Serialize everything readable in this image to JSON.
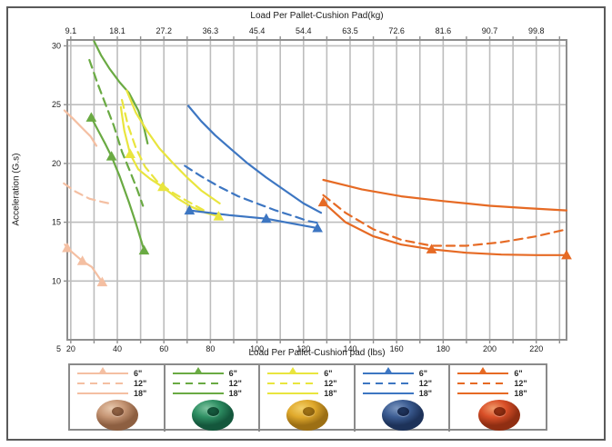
{
  "chart_data": {
    "type": "line",
    "title_top": "Load Per Pallet-Cushion Pad(kg)",
    "xlabel_bottom": "Load Per Pallet-Cushion pad (lbs)",
    "ylabel": "Acceleration (G.s)",
    "x_ticks_lbs": [
      20,
      40,
      60,
      80,
      100,
      120,
      140,
      160,
      180,
      200,
      220
    ],
    "x_ticks_kg": [
      "9.1",
      "18.1",
      "27.2",
      "36.3",
      "45.4",
      "54.4",
      "63.5",
      "72.6",
      "81.6",
      "90.7",
      "99.8"
    ],
    "y_ticks": [
      5,
      10,
      15,
      20,
      25,
      30
    ],
    "y_corner_label": "5",
    "xlim": [
      18.5,
      233
    ],
    "ylim": [
      5,
      30.5
    ],
    "x_grid": {
      "start": 20,
      "end": 230,
      "step": 10
    },
    "y_grid": {
      "start": 10,
      "end": 30,
      "step": 5
    },
    "grid": true,
    "grid_color": "#bdbdbd",
    "border_color": "#8f8f8f",
    "legend_position": "bottom",
    "series": [
      {
        "group": "tan",
        "name": "6\"",
        "style": "solid",
        "marker": "triangle",
        "color": "#f4bfa2",
        "points": [
          [
            17.5,
            13.1
          ],
          [
            18.5,
            12.8
          ],
          [
            25,
            11.7
          ],
          [
            29,
            11.2
          ],
          [
            33.5,
            9.9
          ]
        ],
        "markers": [
          [
            18.5,
            12.8
          ],
          [
            25,
            11.7
          ],
          [
            33.5,
            9.9
          ]
        ]
      },
      {
        "group": "tan",
        "name": "12\"",
        "style": "dashed",
        "color": "#f4bfa2",
        "points": [
          [
            17,
            18.3
          ],
          [
            22,
            17.6
          ],
          [
            28,
            17.0
          ],
          [
            33,
            16.75
          ],
          [
            36.5,
            16.6
          ]
        ]
      },
      {
        "group": "tan",
        "name": "18\"",
        "style": "solid",
        "color": "#f4bfa2",
        "points": [
          [
            17.3,
            24.5
          ],
          [
            21,
            23.8
          ],
          [
            25,
            23.0
          ],
          [
            28.5,
            22.3
          ],
          [
            31,
            21.5
          ]
        ]
      },
      {
        "group": "green",
        "name": "6\"",
        "style": "solid",
        "marker": "triangle",
        "color": "#6aaa43",
        "points": [
          [
            28.8,
            23.9
          ],
          [
            32,
            22.7
          ],
          [
            35,
            21.6
          ],
          [
            37.5,
            20.6
          ],
          [
            41,
            18.9
          ],
          [
            45,
            16.7
          ],
          [
            48,
            14.9
          ],
          [
            51.5,
            12.6
          ]
        ],
        "markers": [
          [
            28.8,
            23.9
          ],
          [
            37.5,
            20.6
          ],
          [
            51.5,
            12.6
          ]
        ]
      },
      {
        "group": "green",
        "name": "12\"",
        "style": "dashed",
        "color": "#6aaa43",
        "points": [
          [
            28,
            28.8
          ],
          [
            31.5,
            26.8
          ],
          [
            35,
            25.0
          ],
          [
            38.5,
            23.2
          ],
          [
            42,
            21.0
          ],
          [
            45.5,
            19.3
          ],
          [
            48.5,
            17.8
          ],
          [
            51,
            16.4
          ]
        ]
      },
      {
        "group": "green",
        "name": "18\"",
        "style": "solid",
        "color": "#6aaa43",
        "points": [
          [
            30,
            30.4
          ],
          [
            33,
            29.2
          ],
          [
            36.5,
            28.1
          ],
          [
            41,
            26.9
          ],
          [
            45,
            26.0
          ],
          [
            49,
            24.5
          ],
          [
            51.5,
            23.0
          ],
          [
            53,
            21.7
          ]
        ]
      },
      {
        "group": "yellow",
        "name": "6\"",
        "style": "solid",
        "marker": "triangle",
        "color": "#e9e53e",
        "points": [
          [
            41.5,
            24.8
          ],
          [
            43,
            22.8
          ],
          [
            45.5,
            20.8
          ],
          [
            49,
            19.5
          ],
          [
            54,
            18.7
          ],
          [
            59.5,
            18.0
          ],
          [
            66,
            17.0
          ],
          [
            72,
            16.3
          ],
          [
            78,
            15.8
          ],
          [
            83.5,
            15.5
          ]
        ],
        "markers": [
          [
            45.5,
            20.8
          ],
          [
            59.5,
            18.0
          ],
          [
            83.5,
            15.5
          ]
        ]
      },
      {
        "group": "yellow",
        "name": "12\"",
        "style": "dashed",
        "color": "#e9e53e",
        "points": [
          [
            42,
            25.4
          ],
          [
            44.5,
            23.3
          ],
          [
            48,
            21.3
          ],
          [
            52,
            19.7
          ],
          [
            57,
            18.5
          ],
          [
            63,
            17.6
          ],
          [
            70,
            16.8
          ],
          [
            80,
            15.7
          ]
        ]
      },
      {
        "group": "yellow",
        "name": "18\"",
        "style": "solid",
        "color": "#e9e53e",
        "points": [
          [
            44,
            26.2
          ],
          [
            48,
            24.3
          ],
          [
            53,
            22.7
          ],
          [
            58,
            21.3
          ],
          [
            64,
            20.0
          ],
          [
            70,
            18.8
          ],
          [
            76,
            17.7
          ],
          [
            84,
            16.6
          ]
        ]
      },
      {
        "group": "blue",
        "name": "6\"",
        "style": "solid",
        "marker": "triangle",
        "color": "#3d76c2",
        "points": [
          [
            71,
            16.0
          ],
          [
            88,
            15.6
          ],
          [
            104,
            15.3
          ],
          [
            115,
            14.9
          ],
          [
            126,
            14.5
          ]
        ],
        "markers": [
          [
            71,
            16.0
          ],
          [
            104,
            15.3
          ],
          [
            126,
            14.5
          ]
        ]
      },
      {
        "group": "blue",
        "name": "12\"",
        "style": "dashed",
        "color": "#3d76c2",
        "points": [
          [
            69,
            19.8
          ],
          [
            76,
            18.9
          ],
          [
            84,
            18.0
          ],
          [
            92,
            17.2
          ],
          [
            100,
            16.6
          ],
          [
            108,
            16.0
          ],
          [
            116,
            15.5
          ],
          [
            122,
            15.1
          ],
          [
            127.5,
            14.9
          ]
        ]
      },
      {
        "group": "blue",
        "name": "18\"",
        "style": "solid",
        "color": "#3d76c2",
        "points": [
          [
            70.5,
            24.9
          ],
          [
            76,
            23.6
          ],
          [
            82,
            22.4
          ],
          [
            89,
            21.2
          ],
          [
            96,
            20.0
          ],
          [
            104,
            18.8
          ],
          [
            112,
            17.7
          ],
          [
            120,
            16.6
          ],
          [
            127.5,
            15.8
          ]
        ]
      },
      {
        "group": "orange",
        "name": "6\"",
        "style": "solid",
        "marker": "triangle",
        "color": "#e66a24",
        "points": [
          [
            128.5,
            16.7
          ],
          [
            138,
            15.0
          ],
          [
            150,
            13.8
          ],
          [
            162,
            13.1
          ],
          [
            175,
            12.7
          ],
          [
            190,
            12.4
          ],
          [
            205,
            12.25
          ],
          [
            220,
            12.2
          ],
          [
            233,
            12.2
          ]
        ],
        "markers": [
          [
            128.5,
            16.7
          ],
          [
            175,
            12.7
          ],
          [
            233,
            12.2
          ]
        ]
      },
      {
        "group": "orange",
        "name": "12\"",
        "style": "dashed",
        "color": "#e66a24",
        "points": [
          [
            128.5,
            17.3
          ],
          [
            138,
            15.8
          ],
          [
            150,
            14.4
          ],
          [
            162,
            13.5
          ],
          [
            175,
            13.0
          ],
          [
            190,
            13.0
          ],
          [
            205,
            13.3
          ],
          [
            220,
            13.8
          ],
          [
            233,
            14.4
          ]
        ]
      },
      {
        "group": "orange",
        "name": "18\"",
        "style": "solid",
        "color": "#e66a24",
        "points": [
          [
            128.5,
            18.6
          ],
          [
            145,
            17.8
          ],
          [
            162,
            17.2
          ],
          [
            180,
            16.8
          ],
          [
            200,
            16.4
          ],
          [
            216,
            16.2
          ],
          [
            233,
            16.0
          ]
        ]
      }
    ]
  },
  "legend": {
    "groups": [
      {
        "id": "tan",
        "color": "#f4bfa2",
        "entries": [
          "6\"",
          "12\"",
          "18\""
        ],
        "donut": {
          "light": "#e8c9ae",
          "base": "#c69675",
          "dark": "#8d5f41",
          "hole": "#6e4630"
        }
      },
      {
        "id": "green",
        "color": "#6aaa43",
        "entries": [
          "6\"",
          "12\"",
          "18\""
        ],
        "donut": {
          "light": "#7fc4a0",
          "base": "#2e8f63",
          "dark": "#14573c",
          "hole": "#0d3d29"
        }
      },
      {
        "id": "yellow",
        "color": "#e9e53e",
        "entries": [
          "6\"",
          "12\"",
          "18\""
        ],
        "donut": {
          "light": "#f2d06a",
          "base": "#e0a92c",
          "dark": "#9c6f14",
          "hole": "#805a0d"
        }
      },
      {
        "id": "blue",
        "color": "#3d76c2",
        "entries": [
          "6\"",
          "12\"",
          "18\""
        ],
        "donut": {
          "light": "#7d97c0",
          "base": "#3b5c92",
          "dark": "#1d3259",
          "hole": "#141f3f"
        }
      },
      {
        "id": "orange",
        "color": "#e66a24",
        "entries": [
          "6\"",
          "12\"",
          "18\""
        ],
        "donut": {
          "light": "#f09a6a",
          "base": "#d94f28",
          "dark": "#8f2e12",
          "hole": "#6e2009"
        }
      }
    ]
  }
}
